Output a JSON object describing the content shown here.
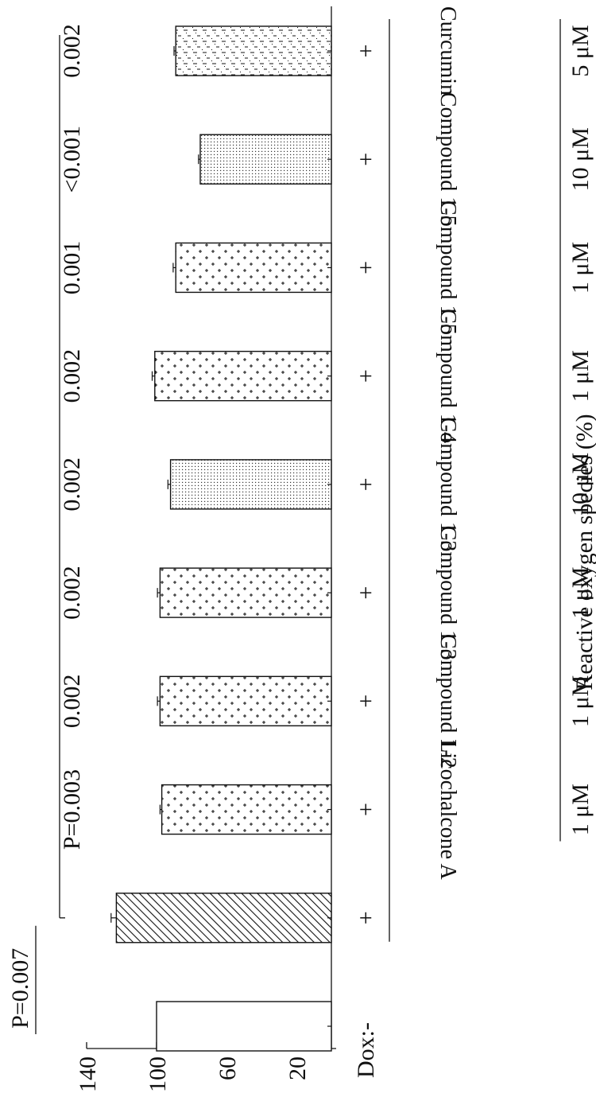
{
  "chart_data": {
    "type": "bar",
    "orientation": "rotated-90",
    "ylabel": "Reactive oxygen species (%)",
    "yticks": [
      20,
      60,
      100,
      140
    ],
    "ylim": [
      0,
      140
    ],
    "dox_label": "Dox:",
    "categories": [
      {
        "dox": "-",
        "compound": "",
        "dose": "",
        "value": 100,
        "error": 0,
        "pvalue": "",
        "pattern": "white"
      },
      {
        "dox": "+",
        "compound": "",
        "dose": "",
        "value": 123,
        "error": 3,
        "pvalue": "",
        "pattern": "hatch"
      },
      {
        "dox": "+",
        "compound": "Licochalcone A",
        "dose": "1 μM",
        "value": 97,
        "error": 1,
        "pvalue": "P=0.003",
        "pattern": "plus"
      },
      {
        "dox": "+",
        "compound": "Compound 1-2",
        "dose": "1 μM",
        "value": 98,
        "error": 1.5,
        "pvalue": "0.002",
        "pattern": "plus"
      },
      {
        "dox": "+",
        "compound": "Compound 1-3",
        "dose": "1 μM",
        "value": 98,
        "error": 1.5,
        "pvalue": "0.002",
        "pattern": "plus"
      },
      {
        "dox": "+",
        "compound": "Compound 1-3",
        "dose": "10 μM",
        "value": 92,
        "error": 1.5,
        "pvalue": "0.002",
        "pattern": "dots"
      },
      {
        "dox": "+",
        "compound": "Compound 1-4",
        "dose": "1 μM",
        "value": 101,
        "error": 1.5,
        "pvalue": "0.002",
        "pattern": "plus"
      },
      {
        "dox": "+",
        "compound": "Compound 1-5",
        "dose": "1 μM",
        "value": 89,
        "error": 1.5,
        "pvalue": "0.001",
        "pattern": "plus"
      },
      {
        "dox": "+",
        "compound": "Compound 1-5",
        "dose": "10 μM",
        "value": 75,
        "error": 1,
        "pvalue": "<0.001",
        "pattern": "dots"
      },
      {
        "dox": "+",
        "compound": "Curcumin",
        "dose": "5 μM",
        "value": 89,
        "error": 1,
        "pvalue": "0.002",
        "pattern": "dash"
      }
    ],
    "bracket_label": "P=0.007"
  }
}
